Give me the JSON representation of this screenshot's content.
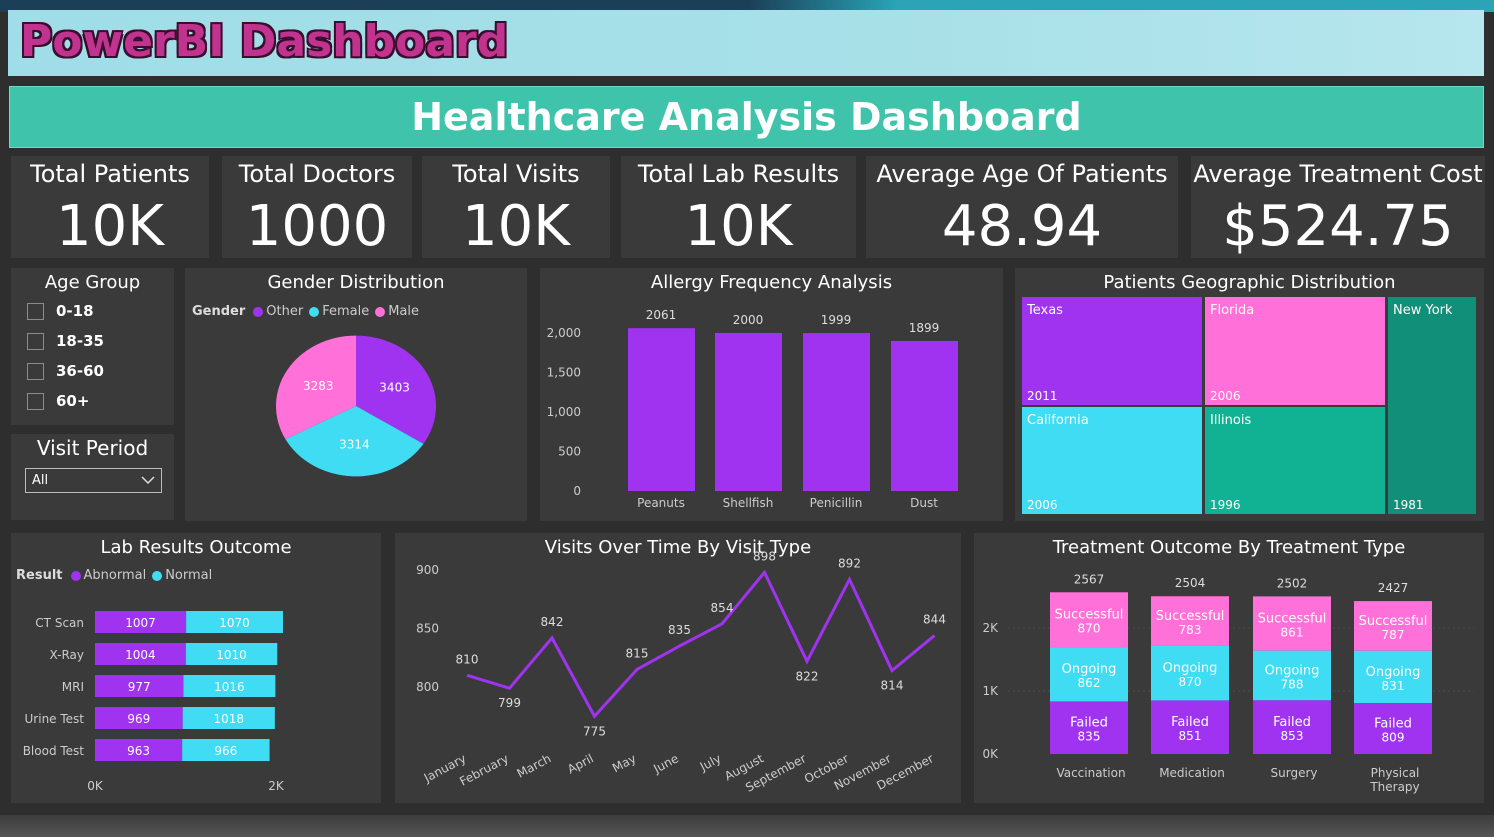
{
  "header": {
    "title": "PowerBI Dashboard"
  },
  "banner": {
    "title": "Healthcare Analysis Dashboard"
  },
  "kpis": [
    {
      "label": "Total Patients",
      "value": "10K"
    },
    {
      "label": "Total Doctors",
      "value": "1000"
    },
    {
      "label": "Total Visits",
      "value": "10K"
    },
    {
      "label": "Total Lab Results",
      "value": "10K"
    },
    {
      "label": "Average Age Of Patients",
      "value": "48.94"
    },
    {
      "label": "Average Treatment Cost",
      "value": "$524.75"
    }
  ],
  "age_group": {
    "title": "Age Group",
    "items": [
      "0-18",
      "18-35",
      "36-60",
      "60+"
    ]
  },
  "visit_period": {
    "title": "Visit Period",
    "selected": "All"
  },
  "colors": {
    "purple": "#a033ef",
    "cyan": "#3fdcf4",
    "pink": "#ff70d8",
    "teal": "#11b294",
    "darkteal": "#128f79"
  },
  "gender": {
    "title": "Gender Distribution",
    "legend_title": "Gender",
    "legend": [
      "Other",
      "Female",
      "Male"
    ]
  },
  "allergy": {
    "title": "Allergy Frequency Analysis"
  },
  "geo": {
    "title": "Patients Geographic Distribution"
  },
  "lab": {
    "title": "Lab Results Outcome",
    "legend_title": "Result",
    "legend": [
      "Abnormal",
      "Normal"
    ]
  },
  "visits": {
    "title": "Visits Over Time By Visit Type"
  },
  "treatment": {
    "title": "Treatment Outcome By Treatment Type"
  },
  "chart_data": [
    {
      "type": "pie",
      "title": "Gender Distribution",
      "labels": [
        "Other",
        "Female",
        "Male"
      ],
      "values": [
        3403,
        3314,
        3283
      ]
    },
    {
      "type": "bar",
      "title": "Allergy Frequency Analysis",
      "categories": [
        "Peanuts",
        "Shellfish",
        "Penicillin",
        "Dust"
      ],
      "values": [
        2061,
        2000,
        1999,
        1899
      ],
      "ylim": [
        0,
        2000
      ],
      "yticks": [
        "0",
        "500",
        "1,000",
        "1,500",
        "2,000"
      ]
    },
    {
      "type": "heatmap",
      "title": "Patients Geographic Distribution",
      "categories": [
        "Texas",
        "Florida",
        "New York",
        "California",
        "Illinois"
      ],
      "values": [
        2011,
        2006,
        1981,
        2006,
        1996
      ]
    },
    {
      "type": "bar",
      "title": "Lab Results Outcome",
      "categories": [
        "CT Scan",
        "X-Ray",
        "MRI",
        "Urine Test",
        "Blood Test"
      ],
      "series": [
        {
          "name": "Abnormal",
          "values": [
            1007,
            1004,
            977,
            969,
            963
          ]
        },
        {
          "name": "Normal",
          "values": [
            1070,
            1010,
            1016,
            1018,
            966
          ]
        }
      ],
      "xticks": [
        "0K",
        "2K"
      ],
      "xlim": [
        0,
        2000
      ]
    },
    {
      "type": "line",
      "title": "Visits Over Time By Visit Type",
      "x": [
        "January",
        "February",
        "March",
        "April",
        "May",
        "June",
        "July",
        "August",
        "September",
        "October",
        "November",
        "December"
      ],
      "values": [
        810,
        799,
        842,
        775,
        815,
        835,
        854,
        898,
        822,
        892,
        814,
        844
      ],
      "yticks": [
        "800",
        "850",
        "900"
      ],
      "ylim": [
        770,
        910
      ]
    },
    {
      "type": "bar",
      "title": "Treatment Outcome By Treatment Type",
      "categories": [
        "Vaccination",
        "Medication",
        "Surgery",
        "Physical Therapy"
      ],
      "series": [
        {
          "name": "Failed",
          "values": [
            835,
            851,
            853,
            809
          ]
        },
        {
          "name": "Ongoing",
          "values": [
            862,
            870,
            788,
            831
          ]
        },
        {
          "name": "Successful",
          "values": [
            870,
            783,
            861,
            787
          ]
        }
      ],
      "totals": [
        2567,
        2504,
        2502,
        2427
      ],
      "yticks": [
        "0K",
        "1K",
        "2K"
      ],
      "ylim": [
        0,
        2800
      ]
    }
  ]
}
